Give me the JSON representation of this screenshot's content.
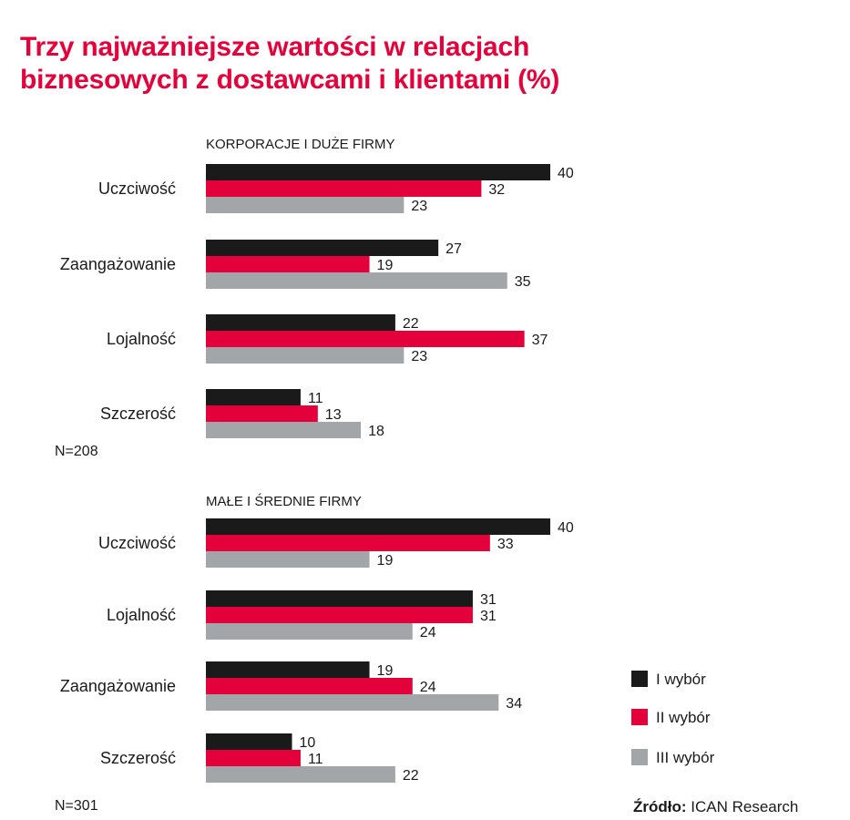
{
  "title_lines": [
    "Trzy najważniejsze wartości w relacjach",
    "biznesowych z dostawcami i klientami (%)"
  ],
  "source": {
    "label": "Źródło:",
    "text": "ICAN Research"
  },
  "chart_data": [
    {
      "type": "bar",
      "orientation": "horizontal",
      "title": "KORPORACJE I DUŻE FIRMY",
      "note": "N=208",
      "categories": [
        "Uczciwość",
        "Zaangażowanie",
        "Lojalność",
        "Szczerość"
      ],
      "series": [
        {
          "name": "I wybór",
          "color": "#1a1a1a",
          "values": [
            40,
            27,
            22,
            11
          ]
        },
        {
          "name": "II wybór",
          "color": "#e4003a",
          "values": [
            32,
            19,
            37,
            13
          ]
        },
        {
          "name": "III wybór",
          "color": "#a2a6a9",
          "values": [
            23,
            35,
            23,
            18
          ]
        }
      ],
      "xlim": [
        0,
        40
      ],
      "grid": false
    },
    {
      "type": "bar",
      "orientation": "horizontal",
      "title": "MAŁE I ŚREDNIE FIRMY",
      "note": "N=301",
      "categories": [
        "Uczciwość",
        "Lojalność",
        "Zaangażowanie",
        "Szczerość"
      ],
      "series": [
        {
          "name": "I wybór",
          "color": "#1a1a1a",
          "values": [
            40,
            31,
            19,
            10
          ]
        },
        {
          "name": "II wybór",
          "color": "#e4003a",
          "values": [
            33,
            31,
            24,
            11
          ]
        },
        {
          "name": "III wybór",
          "color": "#a2a6a9",
          "values": [
            19,
            24,
            34,
            22
          ]
        }
      ],
      "xlim": [
        0,
        40
      ],
      "grid": false
    }
  ],
  "legend": {
    "placement": "bottom-right",
    "items": [
      {
        "label": "I wybór",
        "color": "#1a1a1a"
      },
      {
        "label": "II wybór",
        "color": "#e4003a"
      },
      {
        "label": "III wybór",
        "color": "#a2a6a9"
      }
    ]
  }
}
